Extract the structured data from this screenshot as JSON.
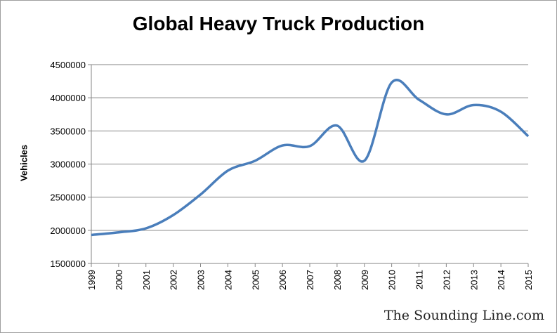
{
  "chart_data": {
    "type": "line",
    "title": "Global Heavy Truck Production",
    "xlabel": "",
    "ylabel": "Vehicles",
    "x": [
      "1999",
      "2000",
      "2001",
      "2002",
      "2003",
      "2004",
      "2005",
      "2006",
      "2007",
      "2008",
      "2009",
      "2010",
      "2011",
      "2012",
      "2013",
      "2014",
      "2015"
    ],
    "series": [
      {
        "values": [
          1930000,
          1970000,
          2030000,
          2230000,
          2540000,
          2900000,
          3050000,
          3280000,
          3270000,
          3580000,
          3050000,
          4230000,
          3970000,
          3750000,
          3890000,
          3790000,
          3420000
        ],
        "color": "#4a7ebb"
      }
    ],
    "ylim": [
      1500000,
      4500000
    ],
    "yticks": [
      "4500000",
      "4000000",
      "3500000",
      "3000000",
      "2500000",
      "2000000",
      "1500000"
    ],
    "grid": true,
    "legend": "none"
  },
  "watermark": "The Sounding Line.com"
}
